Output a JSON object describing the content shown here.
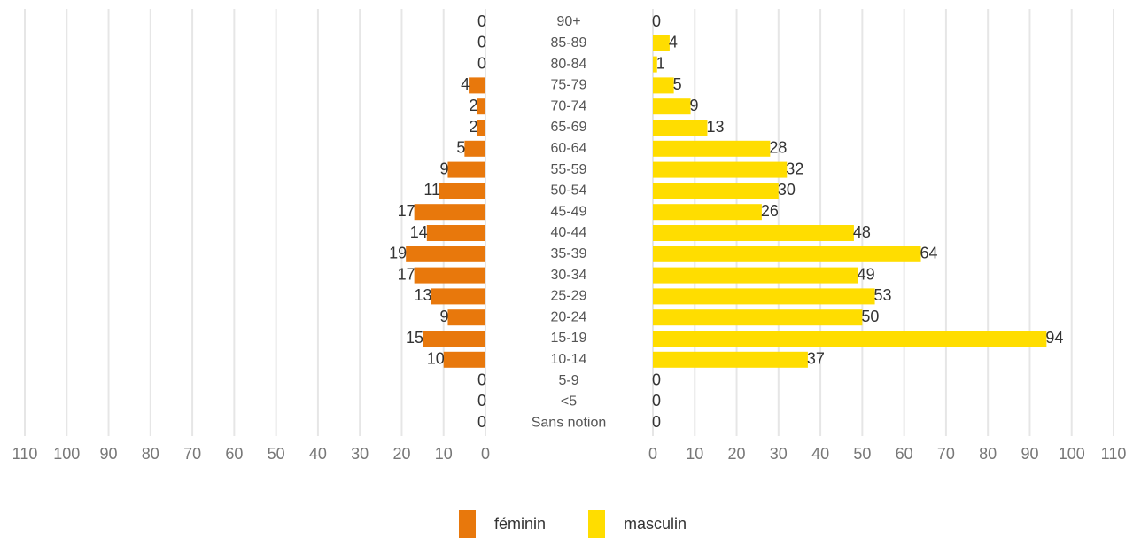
{
  "chart_data": {
    "type": "pyramid",
    "categories": [
      "90+",
      "85-89",
      "80-84",
      "75-79",
      "70-74",
      "65-69",
      "60-64",
      "55-59",
      "50-54",
      "45-49",
      "40-44",
      "35-39",
      "30-34",
      "25-29",
      "20-24",
      "15-19",
      "10-14",
      "5-9",
      "<5",
      "Sans notion"
    ],
    "series": [
      {
        "name": "féminin",
        "color": "#e8780c",
        "values": [
          0,
          0,
          0,
          4,
          2,
          2,
          5,
          9,
          11,
          17,
          14,
          19,
          17,
          13,
          9,
          15,
          10,
          0,
          0,
          0
        ]
      },
      {
        "name": "masculin",
        "color": "#ffdd00",
        "values": [
          0,
          4,
          1,
          5,
          9,
          13,
          28,
          32,
          30,
          26,
          48,
          64,
          49,
          53,
          50,
          94,
          37,
          0,
          0,
          0
        ]
      }
    ],
    "xlim": [
      0,
      110
    ],
    "xticks": [
      0,
      10,
      20,
      30,
      40,
      50,
      60,
      70,
      80,
      90,
      100,
      110
    ],
    "grid": true,
    "legend": "bottom"
  }
}
